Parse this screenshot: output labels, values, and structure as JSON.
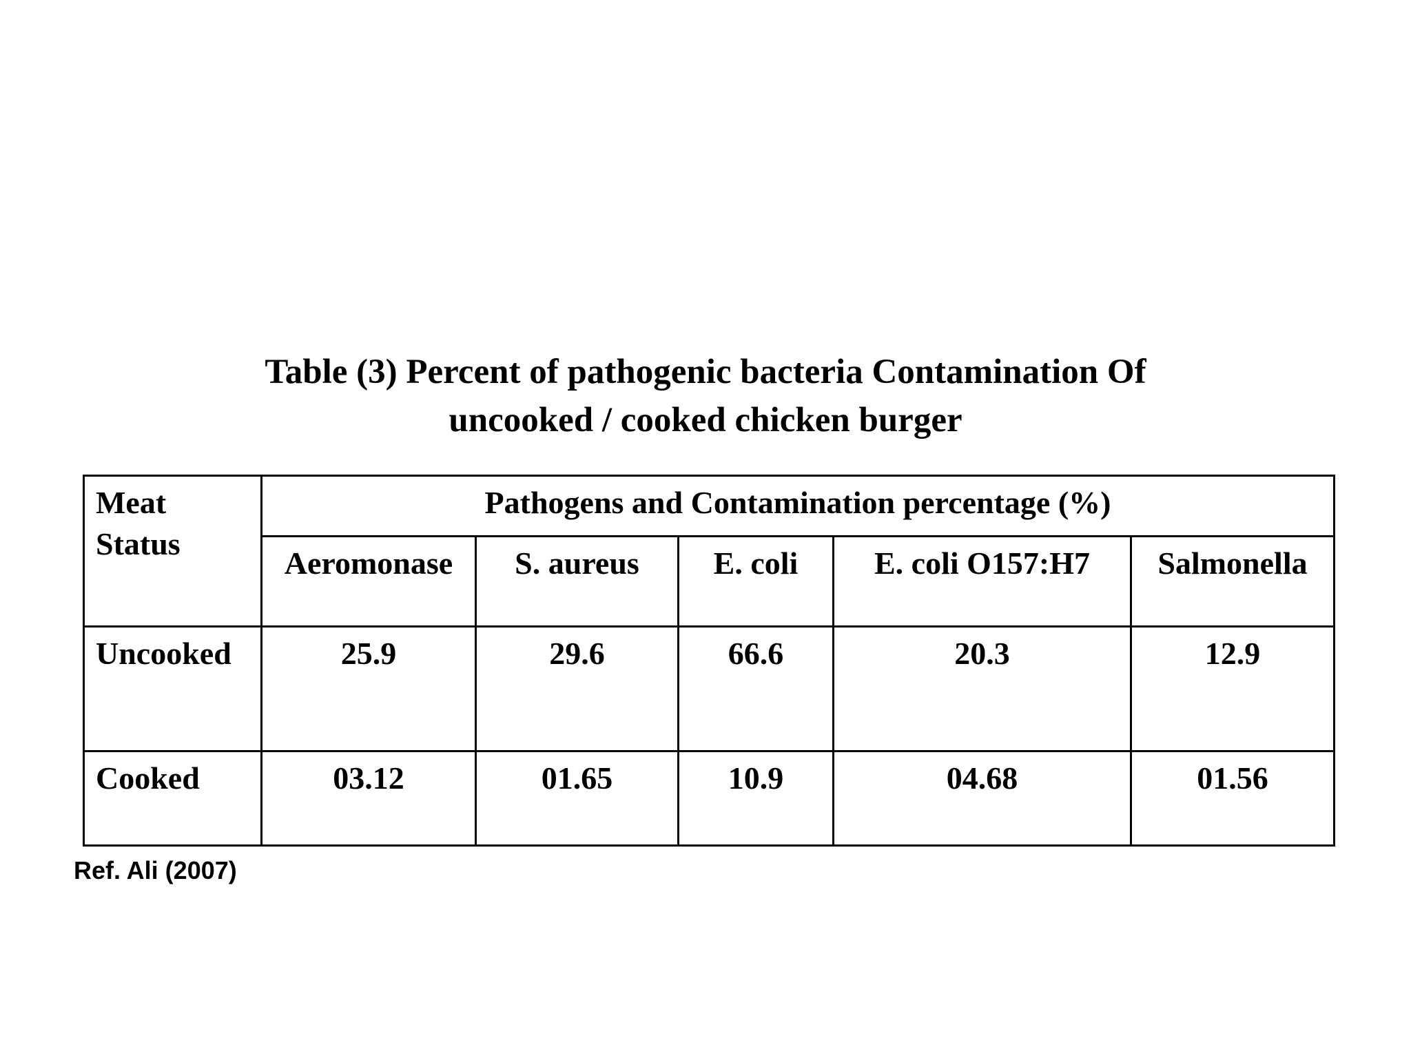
{
  "title": {
    "line1": "Table (3) Percent of pathogenic bacteria Contamination Of",
    "line2": "uncooked / cooked chicken burger"
  },
  "table": {
    "status_header": "Meat Status",
    "group_header": "Pathogens and Contamination percentage (%)",
    "columns": [
      "Aeromonase",
      "S. aureus",
      "E. coli",
      "E. coli O157:H7",
      "Salmonella"
    ],
    "rows": [
      {
        "label": "Uncooked",
        "values": [
          "25.9",
          "29.6",
          "66.6",
          "20.3",
          "12.9"
        ]
      },
      {
        "label": "Cooked",
        "values": [
          "03.12",
          "01.65",
          "10.9",
          "04.68",
          "01.56"
        ]
      }
    ]
  },
  "reference": "Ref. Ali (2007)"
}
